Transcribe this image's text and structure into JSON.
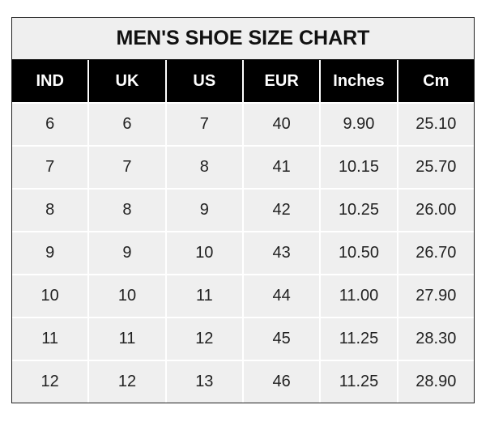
{
  "chart_data": {
    "type": "table",
    "title": "MEN'S SHOE SIZE CHART",
    "columns": [
      "IND",
      "UK",
      "US",
      "EUR",
      "Inches",
      "Cm"
    ],
    "rows": [
      [
        "6",
        "6",
        "7",
        "40",
        "9.90",
        "25.10"
      ],
      [
        "7",
        "7",
        "8",
        "41",
        "10.15",
        "25.70"
      ],
      [
        "8",
        "8",
        "9",
        "42",
        "10.25",
        "26.00"
      ],
      [
        "9",
        "9",
        "10",
        "43",
        "10.50",
        "26.70"
      ],
      [
        "10",
        "10",
        "11",
        "44",
        "11.00",
        "27.90"
      ],
      [
        "11",
        "11",
        "12",
        "45",
        "11.25",
        "28.30"
      ],
      [
        "12",
        "12",
        "13",
        "46",
        "11.25",
        "28.90"
      ]
    ],
    "colors": {
      "header_bg": "#000000",
      "header_text": "#ffffff",
      "cell_bg": "#efefef",
      "grid": "#ffffff"
    }
  }
}
